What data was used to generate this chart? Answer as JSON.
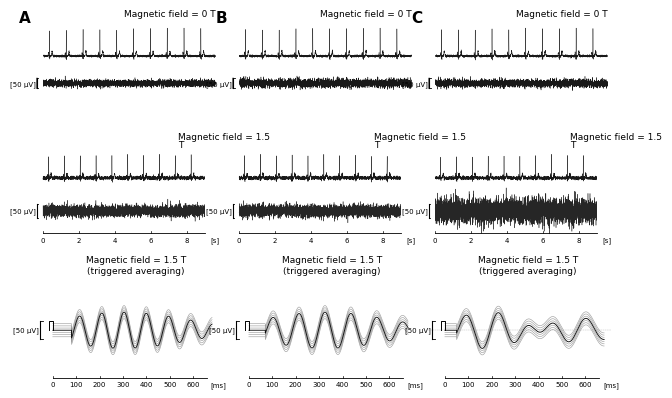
{
  "bg_color": "#ffffff",
  "panel_labels": [
    "A",
    "B",
    "C"
  ],
  "panel_label_fontsize": 11,
  "label_fontweight": "bold",
  "row1_title": "Magnetic field = 0 T",
  "row2_title_line1": "Magnetic field = 1.5",
  "row2_title_line2": "T",
  "row3_title": "Magnetic field = 1.5 T\n(triggered averaging)",
  "title_fontsize": 6.5,
  "scale_label": "[50 μV]",
  "scale_label_fontsize": 5,
  "xaxis_sec_ticks": [
    0,
    2,
    4,
    6,
    8
  ],
  "xaxis_sec_label": "[s]",
  "xaxis_ms_ticks": [
    0,
    100,
    200,
    300,
    400,
    500,
    600
  ],
  "xaxis_ms_label": "[ms]",
  "tick_fontsize": 5
}
